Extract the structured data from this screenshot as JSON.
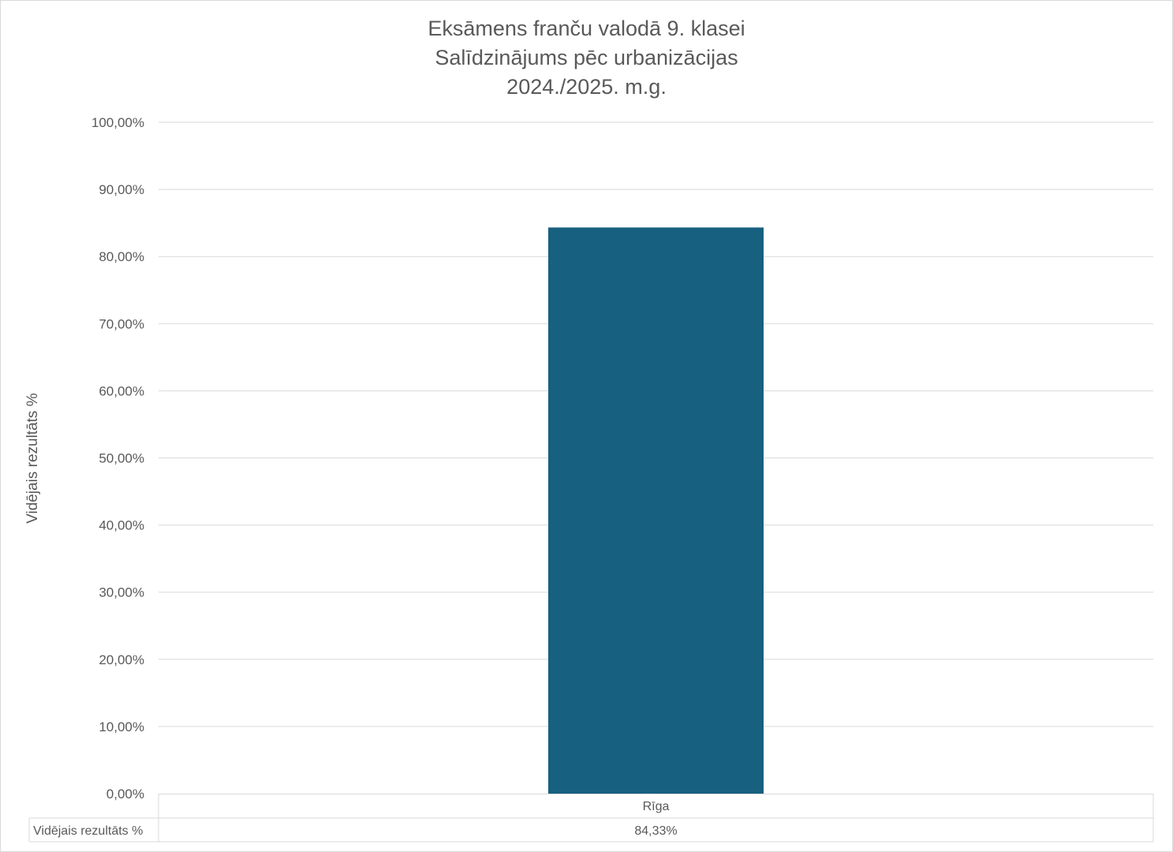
{
  "chart_data": {
    "type": "bar",
    "title_lines": [
      "Eksāmens franču valodā 9. klasei",
      "Salīdzinājums pēc urbanizācijas",
      "2024./2025. m.g."
    ],
    "ylabel": "Vidējais rezultāts %",
    "xlabel": "",
    "categories": [
      "Rīga"
    ],
    "series": [
      {
        "name": "Vidējais rezultāts %",
        "values": [
          84.33
        ],
        "value_labels": [
          "84,33%"
        ],
        "color": "#17607f"
      }
    ],
    "ylim": [
      0,
      100
    ],
    "y_ticks": [
      0,
      10,
      20,
      30,
      40,
      50,
      60,
      70,
      80,
      90,
      100
    ],
    "y_tick_labels": [
      "0,00%",
      "10,00%",
      "20,00%",
      "30,00%",
      "40,00%",
      "50,00%",
      "60,00%",
      "70,00%",
      "80,00%",
      "90,00%",
      "100,00%"
    ],
    "grid": true,
    "legend": "data-table",
    "colors": {
      "bar": "#17607f",
      "grid": "#d9d9d9",
      "text": "#595959"
    }
  }
}
